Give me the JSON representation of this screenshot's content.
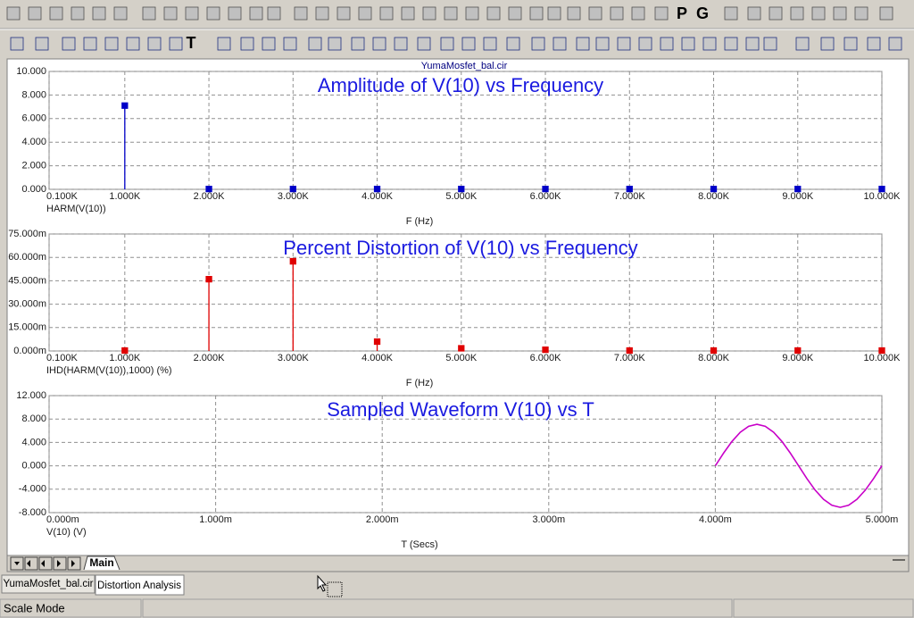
{
  "toolbar": {
    "letter_buttons": [
      "P",
      "G"
    ],
    "text_tool": "T"
  },
  "plot_window": {
    "title": "YumaMosfet_bal.cir",
    "page_tab": "Main"
  },
  "chart_data": [
    {
      "type": "stem",
      "title": "Amplitude of V(10) vs Frequency",
      "xlabel": "F (Hz)",
      "grid": true,
      "x": [
        1000,
        2000,
        3000,
        4000,
        5000,
        6000,
        7000,
        8000,
        9000,
        10000
      ],
      "series": [
        {
          "name": "HARM(V(10))",
          "color": "#0000c8",
          "values": [
            7.1,
            0.03,
            0.03,
            0.03,
            0.03,
            0.03,
            0.03,
            0.03,
            0.03,
            0.03
          ]
        }
      ],
      "xlim": [
        100,
        10000
      ],
      "xticks": [
        {
          "value": 100,
          "label": "0.100K"
        },
        {
          "value": 1000,
          "label": "1.000K"
        },
        {
          "value": 2000,
          "label": "2.000K"
        },
        {
          "value": 3000,
          "label": "3.000K"
        },
        {
          "value": 4000,
          "label": "4.000K"
        },
        {
          "value": 5000,
          "label": "5.000K"
        },
        {
          "value": 6000,
          "label": "6.000K"
        },
        {
          "value": 7000,
          "label": "7.000K"
        },
        {
          "value": 8000,
          "label": "8.000K"
        },
        {
          "value": 9000,
          "label": "9.000K"
        },
        {
          "value": 10000,
          "label": "10.000K"
        }
      ],
      "ylim": [
        0,
        10
      ],
      "yticks": [
        {
          "value": 0,
          "label": "0.000"
        },
        {
          "value": 2,
          "label": "2.000"
        },
        {
          "value": 4,
          "label": "4.000"
        },
        {
          "value": 6,
          "label": "6.000"
        },
        {
          "value": 8,
          "label": "8.000"
        },
        {
          "value": 10,
          "label": "10.000"
        }
      ]
    },
    {
      "type": "stem",
      "title": "Percent Distortion of V(10) vs Frequency",
      "xlabel": "F (Hz)",
      "grid": true,
      "x": [
        1000,
        2000,
        3000,
        4000,
        5000,
        6000,
        7000,
        8000,
        9000,
        10000
      ],
      "series": [
        {
          "name": "IHD(HARM(V(10)),1000) (%)",
          "color": "#e00000",
          "values": [
            0.3,
            46,
            57.5,
            6,
            1.7,
            0.8,
            0.3,
            0.3,
            0.3,
            0.3
          ]
        }
      ],
      "xlim": [
        100,
        10000
      ],
      "xticks": [
        {
          "value": 100,
          "label": "0.100K"
        },
        {
          "value": 1000,
          "label": "1.000K"
        },
        {
          "value": 2000,
          "label": "2.000K"
        },
        {
          "value": 3000,
          "label": "3.000K"
        },
        {
          "value": 4000,
          "label": "4.000K"
        },
        {
          "value": 5000,
          "label": "5.000K"
        },
        {
          "value": 6000,
          "label": "6.000K"
        },
        {
          "value": 7000,
          "label": "7.000K"
        },
        {
          "value": 8000,
          "label": "8.000K"
        },
        {
          "value": 9000,
          "label": "9.000K"
        },
        {
          "value": 10000,
          "label": "10.000K"
        }
      ],
      "ylim": [
        0,
        75
      ],
      "yticks": [
        {
          "value": 0,
          "label": "0.000m"
        },
        {
          "value": 15,
          "label": "15.000m"
        },
        {
          "value": 30,
          "label": "30.000m"
        },
        {
          "value": 45,
          "label": "45.000m"
        },
        {
          "value": 60,
          "label": "60.000m"
        },
        {
          "value": 75,
          "label": "75.000m"
        }
      ]
    },
    {
      "type": "line",
      "title": "Sampled Waveform  V(10) vs T",
      "xlabel": "T (Secs)",
      "grid": true,
      "x": [
        4,
        4.05,
        4.1,
        4.15,
        4.2,
        4.25,
        4.3,
        4.35,
        4.4,
        4.45,
        4.5,
        4.55,
        4.6,
        4.65,
        4.7,
        4.75,
        4.8,
        4.85,
        4.9,
        4.95,
        5
      ],
      "series": [
        {
          "name": "V(10) (V)",
          "color": "#c800c8",
          "values": [
            0,
            2.19,
            4.17,
            5.74,
            6.75,
            7.1,
            6.75,
            5.74,
            4.17,
            2.19,
            0,
            -2.19,
            -4.17,
            -5.74,
            -6.75,
            -7.1,
            -6.75,
            -5.74,
            -4.17,
            -2.19,
            0
          ]
        }
      ],
      "xlim": [
        0,
        5
      ],
      "xticks": [
        {
          "value": 0,
          "label": "0.000m"
        },
        {
          "value": 1,
          "label": "1.000m"
        },
        {
          "value": 2,
          "label": "2.000m"
        },
        {
          "value": 3,
          "label": "3.000m"
        },
        {
          "value": 4,
          "label": "4.000m"
        },
        {
          "value": 5,
          "label": "5.000m"
        }
      ],
      "ylim": [
        -8,
        12
      ],
      "yticks": [
        {
          "value": -8,
          "label": "-8.000"
        },
        {
          "value": -4,
          "label": "-4.000"
        },
        {
          "value": 0,
          "label": "0.000"
        },
        {
          "value": 4,
          "label": "4.000"
        },
        {
          "value": 8,
          "label": "8.000"
        },
        {
          "value": 12,
          "label": "12.000"
        }
      ]
    }
  ],
  "window_tabs": [
    "YumaMosfet_bal.cir",
    "Distortion Analysis"
  ],
  "status_bar": {
    "mode": "Scale Mode"
  }
}
